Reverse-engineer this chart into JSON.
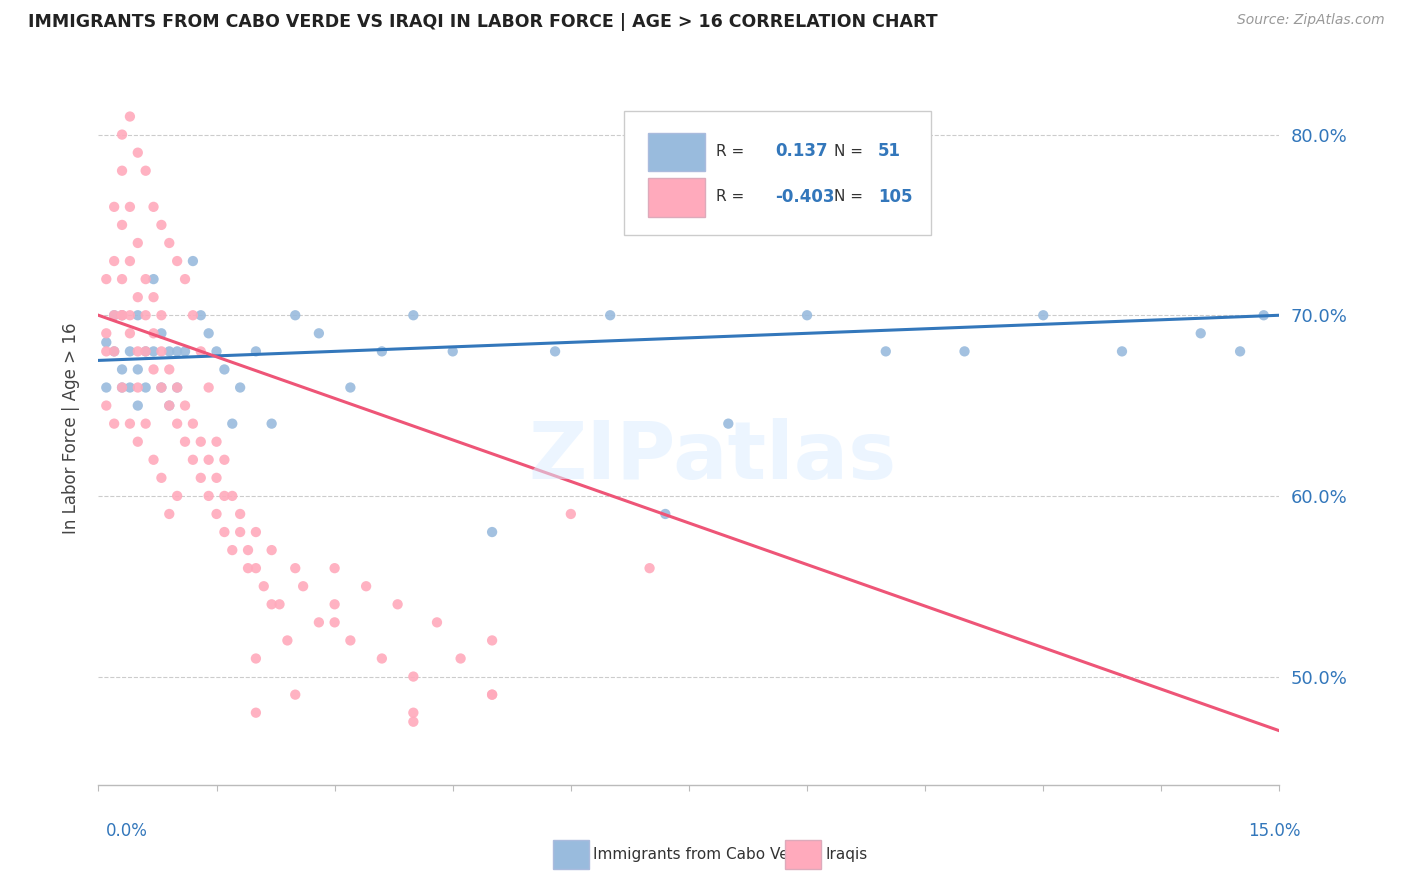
{
  "title": "IMMIGRANTS FROM CABO VERDE VS IRAQI IN LABOR FORCE | AGE > 16 CORRELATION CHART",
  "source_text": "Source: ZipAtlas.com",
  "ylabel": "In Labor Force | Age > 16",
  "ymin": 0.44,
  "ymax": 0.835,
  "xmin": 0.0,
  "xmax": 0.15,
  "yticks": [
    0.5,
    0.6,
    0.7,
    0.8
  ],
  "ytick_labels": [
    "50.0%",
    "60.0%",
    "70.0%",
    "80.0%"
  ],
  "watermark": "ZIPatlas",
  "blue_color": "#99BBDD",
  "pink_color": "#FFAABC",
  "blue_line_color": "#3377BB",
  "pink_line_color": "#EE5577",
  "cabo_verde_x": [
    0.001,
    0.001,
    0.002,
    0.002,
    0.003,
    0.003,
    0.003,
    0.004,
    0.004,
    0.005,
    0.005,
    0.005,
    0.006,
    0.006,
    0.007,
    0.007,
    0.008,
    0.008,
    0.009,
    0.009,
    0.01,
    0.01,
    0.011,
    0.012,
    0.013,
    0.014,
    0.015,
    0.016,
    0.017,
    0.018,
    0.02,
    0.022,
    0.025,
    0.028,
    0.032,
    0.036,
    0.04,
    0.045,
    0.05,
    0.058,
    0.065,
    0.072,
    0.08,
    0.09,
    0.1,
    0.11,
    0.12,
    0.13,
    0.14,
    0.145,
    0.148
  ],
  "cabo_verde_y": [
    0.685,
    0.66,
    0.7,
    0.68,
    0.7,
    0.67,
    0.66,
    0.68,
    0.66,
    0.7,
    0.67,
    0.65,
    0.68,
    0.66,
    0.72,
    0.68,
    0.69,
    0.66,
    0.68,
    0.65,
    0.68,
    0.66,
    0.68,
    0.73,
    0.7,
    0.69,
    0.68,
    0.67,
    0.64,
    0.66,
    0.68,
    0.64,
    0.7,
    0.69,
    0.66,
    0.68,
    0.7,
    0.68,
    0.58,
    0.68,
    0.7,
    0.59,
    0.64,
    0.7,
    0.68,
    0.68,
    0.7,
    0.68,
    0.69,
    0.68,
    0.7
  ],
  "iraqi_x": [
    0.001,
    0.001,
    0.001,
    0.002,
    0.002,
    0.002,
    0.003,
    0.003,
    0.003,
    0.003,
    0.004,
    0.004,
    0.004,
    0.005,
    0.005,
    0.005,
    0.006,
    0.006,
    0.006,
    0.007,
    0.007,
    0.007,
    0.008,
    0.008,
    0.008,
    0.009,
    0.009,
    0.01,
    0.01,
    0.011,
    0.011,
    0.012,
    0.012,
    0.013,
    0.013,
    0.014,
    0.014,
    0.015,
    0.015,
    0.016,
    0.016,
    0.017,
    0.018,
    0.019,
    0.02,
    0.021,
    0.022,
    0.023,
    0.025,
    0.026,
    0.028,
    0.03,
    0.032,
    0.034,
    0.036,
    0.038,
    0.04,
    0.043,
    0.046,
    0.05,
    0.003,
    0.004,
    0.005,
    0.006,
    0.007,
    0.008,
    0.009,
    0.01,
    0.011,
    0.012,
    0.013,
    0.014,
    0.015,
    0.016,
    0.017,
    0.018,
    0.019,
    0.02,
    0.022,
    0.024,
    0.001,
    0.002,
    0.002,
    0.003,
    0.003,
    0.004,
    0.004,
    0.005,
    0.005,
    0.006,
    0.007,
    0.008,
    0.009,
    0.01,
    0.02,
    0.03,
    0.04,
    0.05,
    0.06,
    0.07,
    0.02,
    0.025,
    0.03,
    0.04,
    0.05
  ],
  "iraqi_y": [
    0.69,
    0.72,
    0.68,
    0.76,
    0.73,
    0.7,
    0.78,
    0.75,
    0.72,
    0.7,
    0.7,
    0.73,
    0.76,
    0.68,
    0.71,
    0.74,
    0.68,
    0.7,
    0.72,
    0.67,
    0.69,
    0.71,
    0.66,
    0.68,
    0.7,
    0.65,
    0.67,
    0.64,
    0.66,
    0.63,
    0.65,
    0.62,
    0.64,
    0.61,
    0.63,
    0.6,
    0.62,
    0.59,
    0.61,
    0.58,
    0.6,
    0.57,
    0.59,
    0.56,
    0.58,
    0.55,
    0.57,
    0.54,
    0.56,
    0.55,
    0.53,
    0.56,
    0.52,
    0.55,
    0.51,
    0.54,
    0.5,
    0.53,
    0.51,
    0.52,
    0.8,
    0.81,
    0.79,
    0.78,
    0.76,
    0.75,
    0.74,
    0.73,
    0.72,
    0.7,
    0.68,
    0.66,
    0.63,
    0.62,
    0.6,
    0.58,
    0.57,
    0.56,
    0.54,
    0.52,
    0.65,
    0.64,
    0.68,
    0.66,
    0.7,
    0.69,
    0.64,
    0.63,
    0.66,
    0.64,
    0.62,
    0.61,
    0.59,
    0.6,
    0.51,
    0.54,
    0.48,
    0.49,
    0.59,
    0.56,
    0.48,
    0.49,
    0.53,
    0.475,
    0.49
  ]
}
